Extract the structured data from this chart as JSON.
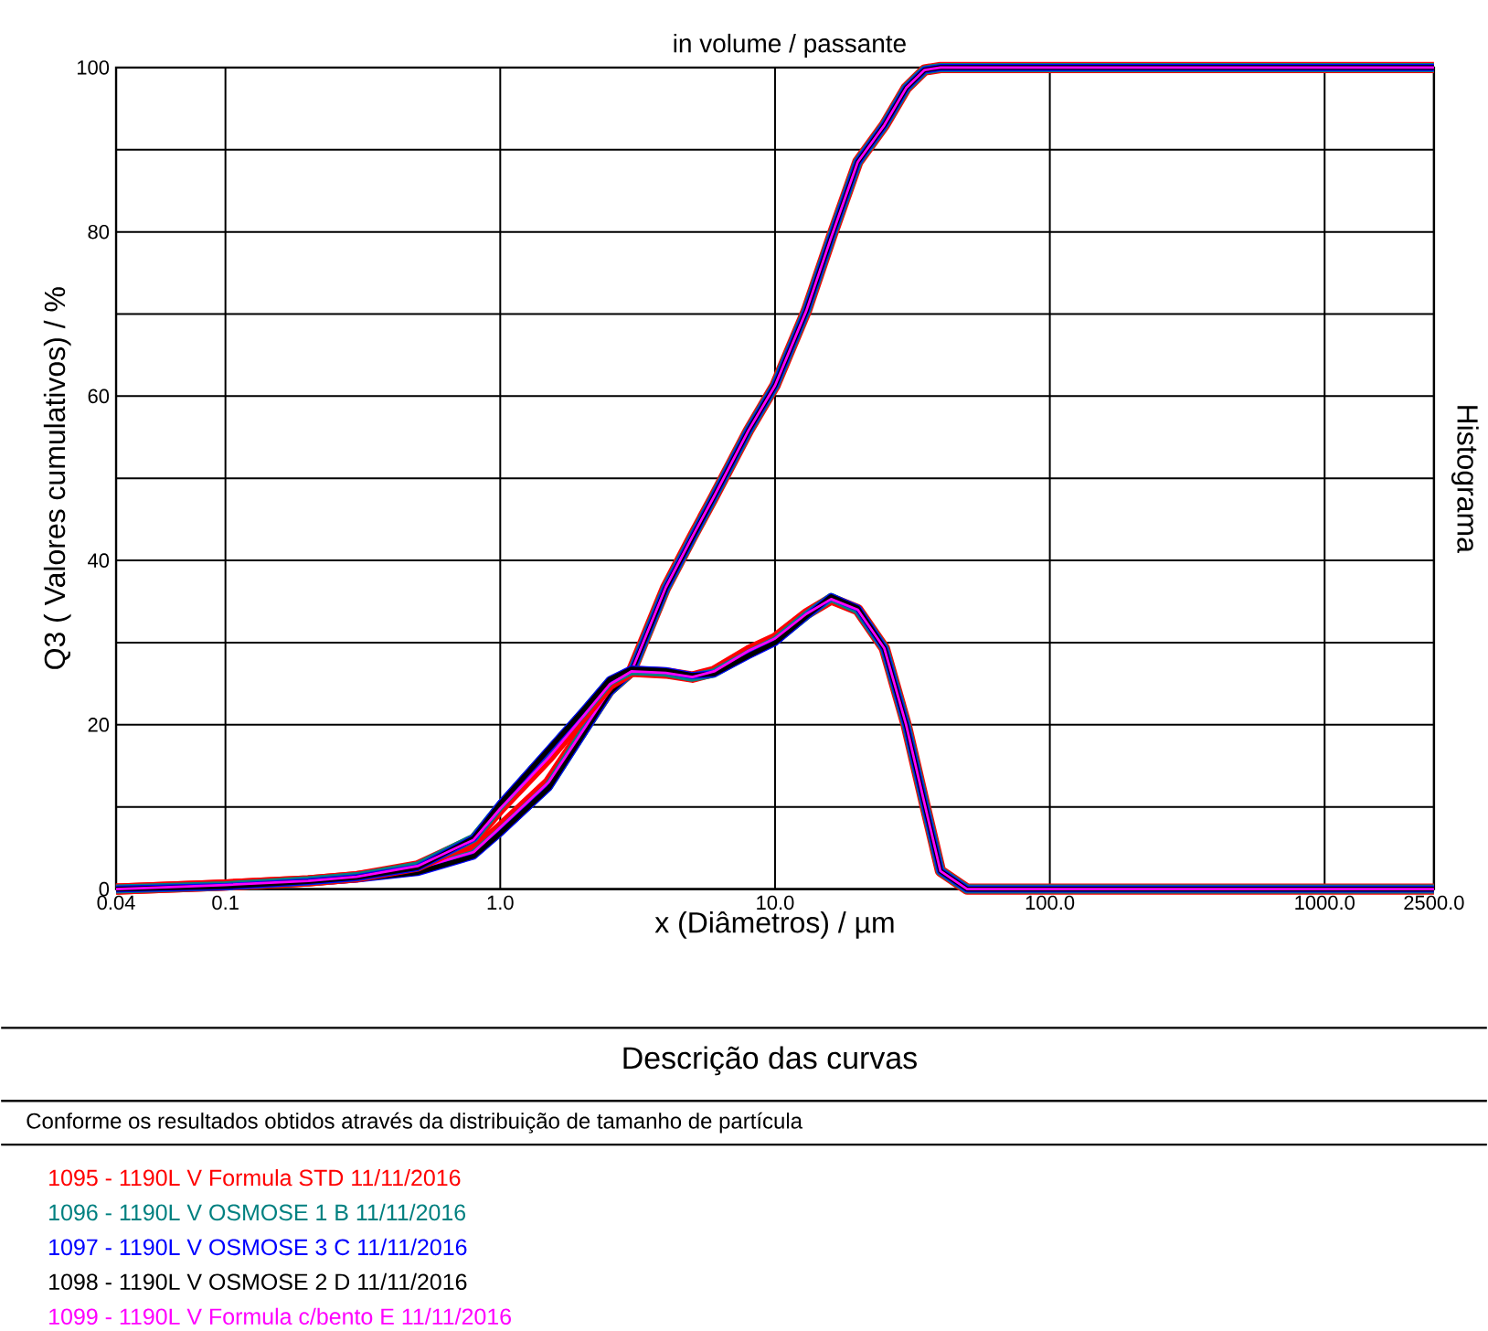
{
  "chart_data": {
    "type": "line",
    "title": "in volume / passante",
    "xlabel": "x (Diâmetros) / µm",
    "ylabel": "Q3 ( Valores cumulativos) / %",
    "y2label": "Histograma",
    "log": "x",
    "grid": true,
    "legend": "bottom",
    "xlim": [
      0.04,
      2500
    ],
    "xticks": [
      {
        "value": 0.04,
        "label": "0.04"
      },
      {
        "value": 0.1,
        "label": "0.1"
      },
      {
        "value": 1,
        "label": "1.0"
      },
      {
        "value": 10,
        "label": "10.0"
      },
      {
        "value": 100,
        "label": "100.0"
      },
      {
        "value": 1000,
        "label": "1000.0"
      },
      {
        "value": 2500,
        "label": "2500.0"
      }
    ],
    "ylim": [
      0,
      100
    ],
    "yticks": [
      0,
      {
        "value": 10,
        "label": null
      },
      20,
      {
        "value": 30,
        "label": null
      },
      40,
      {
        "value": 50,
        "label": null
      },
      60,
      {
        "value": 70,
        "label": null
      },
      80,
      {
        "value": 90,
        "label": null
      },
      100
    ],
    "x": [
      0.04,
      0.1,
      0.2,
      0.3,
      0.5,
      0.8,
      1,
      1.5,
      2,
      2.5,
      3,
      4,
      5,
      6,
      8,
      10,
      13,
      16,
      20,
      25,
      30,
      35,
      40,
      50,
      100,
      2500
    ],
    "series": [
      {
        "name": "1095 - 1190L V Formula STD 11/11/2016",
        "color": "#ff0000",
        "values": [
          0,
          0.5,
          1,
          1.5,
          2.5,
          4.5,
          7.5,
          13,
          19.3,
          24.2,
          26.5,
          36.7,
          42.9,
          47.8,
          55.8,
          61.3,
          70.4,
          79.3,
          88.5,
          93,
          97.5,
          99.7,
          100,
          100,
          100,
          100
        ]
      },
      {
        "name": "1096 - 1190L V OSMOSE 1 B 11/11/2016",
        "color": "#008080",
        "values": [
          0,
          0.4,
          0.9,
          1.4,
          2.3,
          4.2,
          7,
          12.5,
          19,
          24,
          26.4,
          36.6,
          42.8,
          47.8,
          55.8,
          61.3,
          70.4,
          79.3,
          88.5,
          93,
          97.5,
          99.7,
          100,
          100,
          100,
          100
        ]
      },
      {
        "name": "1097 - 1190L V OSMOSE 3 C 11/11/2016",
        "color": "#0000ff",
        "values": [
          0,
          0.3,
          0.8,
          1.2,
          2,
          4,
          6.8,
          12.3,
          18.8,
          23.9,
          26.4,
          36.6,
          42.8,
          47.8,
          55.8,
          61.3,
          70.4,
          79.3,
          88.5,
          93,
          97.5,
          99.7,
          100,
          100,
          100,
          100
        ]
      },
      {
        "name": "1098 - 1190L V OSMOSE 2 D 11/11/2016",
        "color": "#000000",
        "values": [
          0,
          0.3,
          0.8,
          1.2,
          2,
          4,
          6.8,
          12.3,
          18.8,
          23.9,
          26.4,
          36.6,
          42.8,
          47.8,
          55.8,
          61.3,
          70.4,
          79.3,
          88.5,
          93,
          97.5,
          99.7,
          100,
          100,
          100,
          100
        ]
      },
      {
        "name": "1099 - 1190L V Formula c/bento E 11/11/2016",
        "color": "#ff00ff",
        "values": [
          0,
          0.5,
          1,
          1.5,
          2.5,
          4.5,
          7.5,
          13,
          19.3,
          24.2,
          26.5,
          36.7,
          42.9,
          47.8,
          55.8,
          61.3,
          70.4,
          79.3,
          88.5,
          93,
          97.5,
          99.7,
          100,
          100,
          100,
          100
        ]
      },
      {
        "color": "#ff0000",
        "values": [
          0,
          0.5,
          1,
          1.5,
          2.8,
          6,
          9.8,
          16,
          21,
          24.9,
          26.5,
          26.3,
          25.8,
          26.5,
          29,
          30.5,
          33.5,
          35.3,
          34,
          29.3,
          20,
          10.4,
          2.2,
          0,
          0,
          0
        ]
      },
      {
        "color": "#008080",
        "values": [
          0,
          0.4,
          1,
          1.5,
          2.8,
          6.2,
          10.2,
          16.8,
          21.5,
          25.3,
          26.6,
          26.4,
          25.8,
          26.3,
          28.6,
          30.2,
          33.3,
          35.5,
          34,
          29.3,
          20,
          10.4,
          2.2,
          0,
          0,
          0
        ]
      },
      {
        "color": "#0000ff",
        "values": [
          0,
          0.3,
          0.9,
          1.4,
          2.6,
          6.2,
          10.4,
          17,
          21.7,
          25.5,
          26.8,
          26.6,
          26,
          26.2,
          28.4,
          30,
          33.2,
          35.6,
          34.2,
          29.3,
          20,
          10.4,
          2.2,
          0,
          0,
          0
        ]
      },
      {
        "color": "#000000",
        "values": [
          0,
          0.3,
          0.9,
          1.4,
          2.6,
          6.2,
          10.4,
          17,
          21.7,
          25.5,
          26.8,
          26.6,
          26,
          26.2,
          28.4,
          30,
          33.2,
          35.6,
          34.2,
          29.3,
          20,
          10.4,
          2.2,
          0,
          0,
          0
        ]
      },
      {
        "color": "#ff00ff",
        "values": [
          0,
          0.5,
          1,
          1.5,
          2.8,
          6,
          9.8,
          16,
          21,
          24.9,
          26.5,
          26.3,
          25.8,
          26.5,
          29,
          30.5,
          33.5,
          35.3,
          34,
          29.3,
          20,
          10.4,
          2.2,
          0,
          0,
          0
        ]
      }
    ],
    "annotations": [
      "Descrição das curvas",
      "Conforme os resultados obtidos através da distribuição de tamanho de partícula"
    ]
  }
}
